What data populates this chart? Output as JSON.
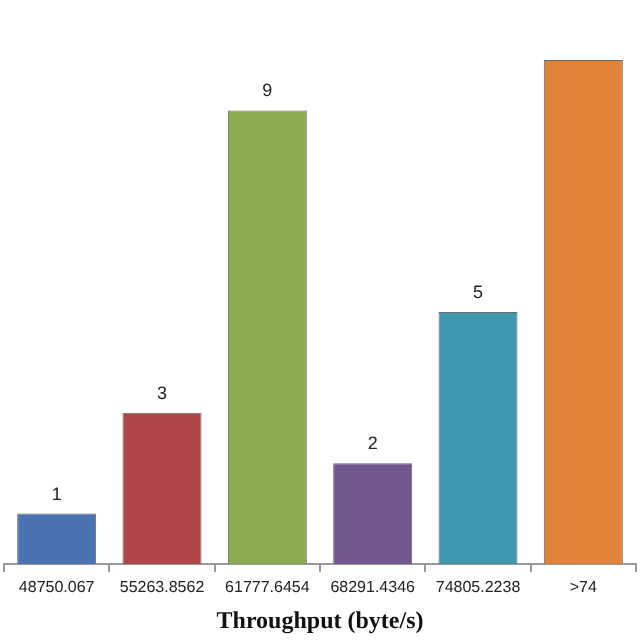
{
  "chart_data": {
    "type": "bar",
    "xlabel": "Throughput (byte/s)",
    "categories": [
      "48750.067",
      "55263.8562",
      "61777.6454",
      "68291.4346",
      "74805.2238",
      ">74"
    ],
    "values": [
      1,
      3,
      9,
      2,
      5,
      10
    ],
    "colors": [
      "#4a72b0",
      "#b04545",
      "#8aab4f",
      "#72568f",
      "#3f98b0",
      "#e08238"
    ],
    "value_labels": [
      "1",
      "3",
      "9",
      "2",
      "5",
      null
    ],
    "grid": false,
    "legend": false
  }
}
